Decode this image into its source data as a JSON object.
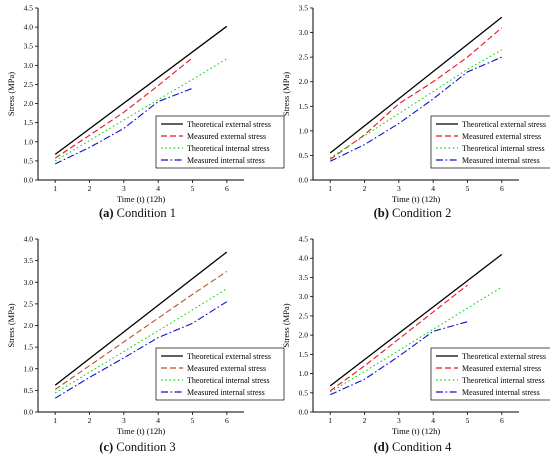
{
  "chart_data": [
    {
      "type": "line",
      "caption_letter": "(a)",
      "caption_text": "Condition 1",
      "xlabel": "Time (t) (12h)",
      "ylabel": "Stress (MPa)",
      "xlim": [
        0.5,
        6.5
      ],
      "ylim": [
        0,
        4.5
      ],
      "x_ticks": [
        1,
        2,
        3,
        4,
        5,
        6
      ],
      "y_ticks": [
        0.0,
        0.5,
        1.0,
        1.5,
        2.0,
        2.5,
        3.0,
        3.5,
        4.0,
        4.5
      ],
      "legend_position": "bottom-right",
      "series": [
        {
          "name": "Theoretical external stress",
          "style": "solid",
          "color": "#000000",
          "x": [
            1,
            6
          ],
          "values": [
            0.67,
            4.02
          ]
        },
        {
          "name": "Measured external stress",
          "style": "dashed",
          "color": "#e8141b",
          "x": [
            1,
            2,
            3,
            4,
            5
          ],
          "values": [
            0.57,
            1.17,
            1.77,
            2.47,
            3.2
          ]
        },
        {
          "name": "Theoretical internal stress",
          "style": "dotted",
          "color": "#12d912",
          "x": [
            1,
            2,
            3,
            4,
            5,
            6
          ],
          "values": [
            0.5,
            1.03,
            1.57,
            2.1,
            2.63,
            3.17
          ]
        },
        {
          "name": "Measured internal stress",
          "style": "dashdot",
          "color": "#1010d0",
          "x": [
            1,
            2,
            3,
            4,
            5
          ],
          "values": [
            0.42,
            0.85,
            1.35,
            2.05,
            2.4
          ]
        }
      ]
    },
    {
      "type": "line",
      "caption_letter": "(b)",
      "caption_text": "Condition 2",
      "xlabel": "Time (t) (12h)",
      "ylabel": "Stress (MPa)",
      "xlim": [
        0.5,
        6.5
      ],
      "ylim": [
        0,
        3.5
      ],
      "x_ticks": [
        1,
        2,
        3,
        4,
        5,
        6
      ],
      "y_ticks": [
        0.0,
        0.5,
        1.0,
        1.5,
        2.0,
        2.5,
        3.0,
        3.5
      ],
      "legend_position": "bottom-right",
      "series": [
        {
          "name": "Theoretical external stress",
          "style": "solid",
          "color": "#000000",
          "x": [
            1,
            6
          ],
          "values": [
            0.55,
            3.31
          ]
        },
        {
          "name": "Measured external stress",
          "style": "dashed",
          "color": "#e8141b",
          "x": [
            1,
            2,
            3,
            4,
            5,
            6
          ],
          "values": [
            0.42,
            0.92,
            1.55,
            2.0,
            2.5,
            3.1
          ]
        },
        {
          "name": "Theoretical internal stress",
          "style": "dotted",
          "color": "#12d912",
          "x": [
            1,
            2,
            3,
            4,
            5,
            6
          ],
          "values": [
            0.45,
            0.9,
            1.35,
            1.8,
            2.25,
            2.65
          ]
        },
        {
          "name": "Measured internal stress",
          "style": "dashdot",
          "color": "#1010d0",
          "x": [
            1,
            2,
            3,
            4,
            5,
            6
          ],
          "values": [
            0.38,
            0.72,
            1.15,
            1.65,
            2.2,
            2.5
          ]
        }
      ]
    },
    {
      "type": "line",
      "caption_letter": "(c)",
      "caption_text": "Condition 3",
      "xlabel": "Time (t) (12h)",
      "ylabel": "Stress (MPa)",
      "xlim": [
        0.5,
        6.5
      ],
      "ylim": [
        0,
        4.0
      ],
      "x_ticks": [
        1,
        2,
        3,
        4,
        5,
        6
      ],
      "y_ticks": [
        0.0,
        0.5,
        1.0,
        1.5,
        2.0,
        2.5,
        3.0,
        3.5,
        4.0
      ],
      "legend_position": "bottom-right",
      "series": [
        {
          "name": "Theoretical external stress",
          "style": "solid",
          "color": "#000000",
          "x": [
            1,
            6
          ],
          "values": [
            0.62,
            3.7
          ]
        },
        {
          "name": "Measured external stress",
          "style": "dashed",
          "color": "#b5521f",
          "x": [
            1,
            2,
            3,
            4,
            5,
            6
          ],
          "values": [
            0.52,
            1.07,
            1.62,
            2.17,
            2.72,
            3.25
          ]
        },
        {
          "name": "Theoretical internal stress",
          "style": "dotted",
          "color": "#12d912",
          "x": [
            1,
            2,
            3,
            4,
            5,
            6
          ],
          "values": [
            0.44,
            0.92,
            1.4,
            1.88,
            2.36,
            2.85
          ]
        },
        {
          "name": "Measured internal stress",
          "style": "dashdot",
          "color": "#1010d0",
          "x": [
            1,
            2,
            3,
            4,
            5,
            6
          ],
          "values": [
            0.32,
            0.8,
            1.25,
            1.72,
            2.05,
            2.55
          ]
        }
      ]
    },
    {
      "type": "line",
      "caption_letter": "(d)",
      "caption_text": "Condition 4",
      "xlabel": "Time (t) (12h)",
      "ylabel": "Stress (MPa)",
      "xlim": [
        0.5,
        6.5
      ],
      "ylim": [
        0,
        4.5
      ],
      "x_ticks": [
        1,
        2,
        3,
        4,
        5,
        6
      ],
      "y_ticks": [
        0.0,
        0.5,
        1.0,
        1.5,
        2.0,
        2.5,
        3.0,
        3.5,
        4.0,
        4.5
      ],
      "legend_position": "bottom-right",
      "series": [
        {
          "name": "Theoretical external stress",
          "style": "solid",
          "color": "#000000",
          "x": [
            1,
            6
          ],
          "values": [
            0.68,
            4.1
          ]
        },
        {
          "name": "Measured external stress",
          "style": "dashed",
          "color": "#e8141b",
          "x": [
            1,
            2,
            3,
            4,
            5
          ],
          "values": [
            0.55,
            1.2,
            1.9,
            2.6,
            3.3
          ]
        },
        {
          "name": "Theoretical internal stress",
          "style": "dotted",
          "color": "#12d912",
          "x": [
            1,
            2,
            3,
            4,
            5,
            6
          ],
          "values": [
            0.52,
            1.05,
            1.6,
            2.15,
            2.7,
            3.25
          ]
        },
        {
          "name": "Measured internal stress",
          "style": "dashdot",
          "color": "#1010d0",
          "x": [
            1,
            2,
            3,
            4,
            5
          ],
          "values": [
            0.45,
            0.85,
            1.45,
            2.1,
            2.35
          ]
        }
      ]
    }
  ]
}
